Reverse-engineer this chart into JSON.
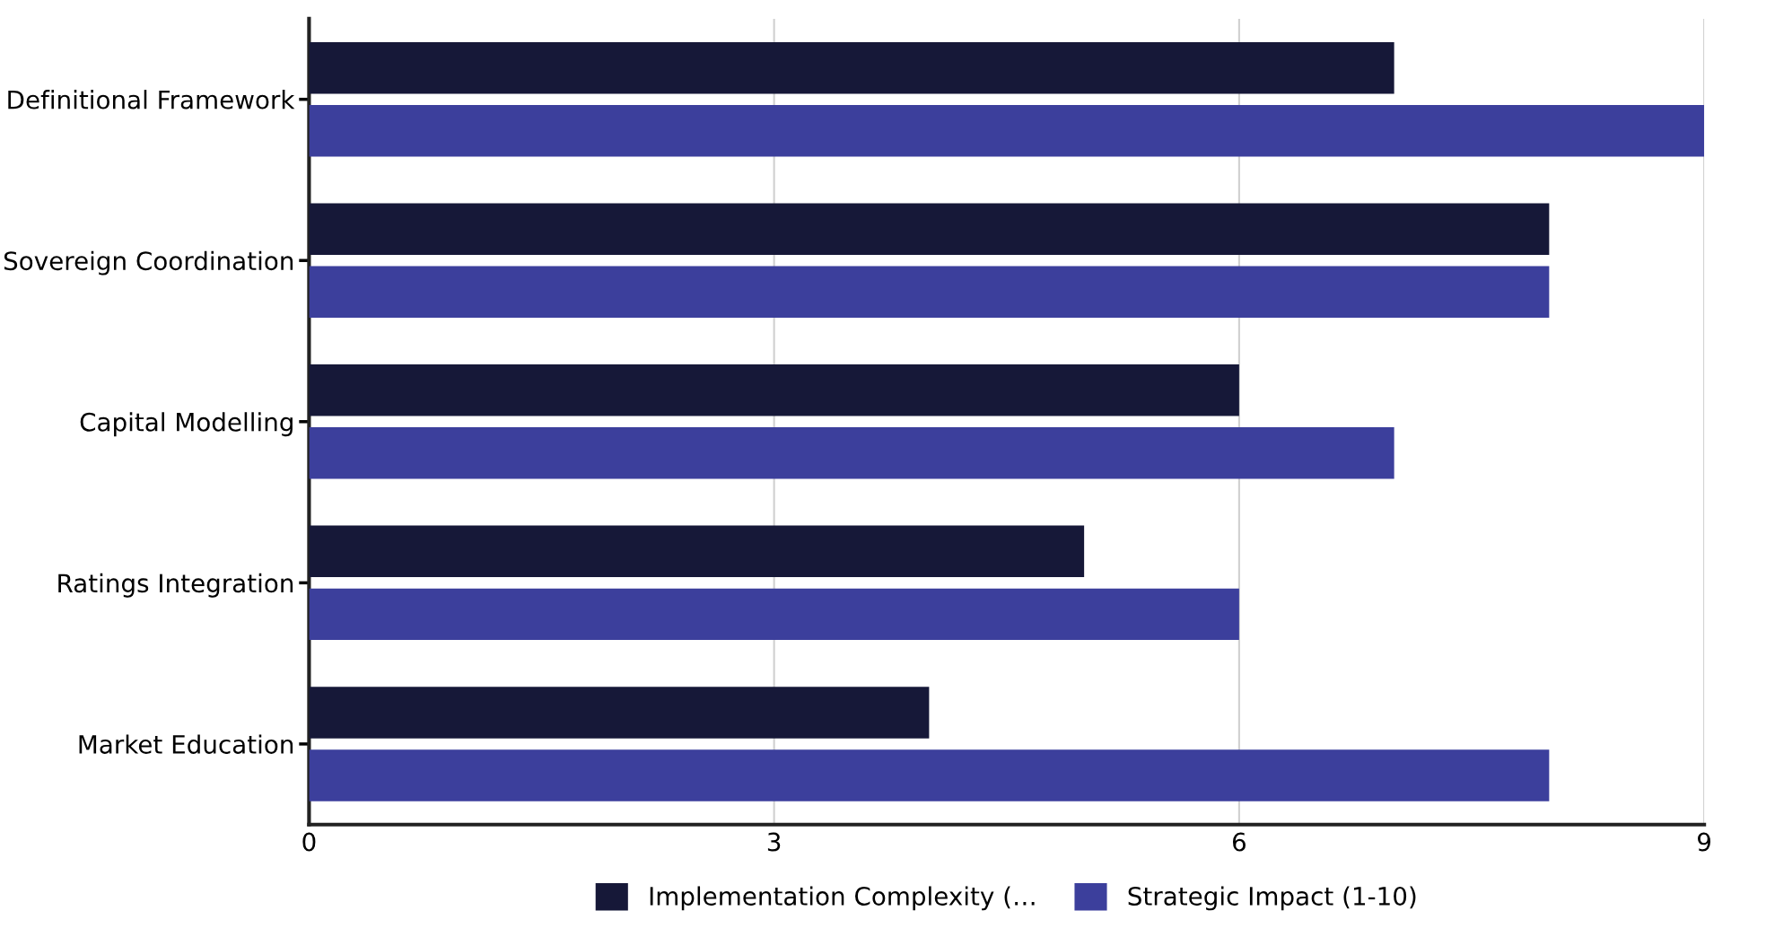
{
  "chart_data": {
    "type": "bar",
    "orientation": "horizontal",
    "categories": [
      "Definitional Framework",
      "Sovereign Coordination",
      "Capital Modelling",
      "Ratings Integration",
      "Market Education"
    ],
    "series": [
      {
        "name": "Implementation Complexity (…",
        "color": "#161838",
        "values": [
          7,
          8,
          6,
          5,
          4
        ]
      },
      {
        "name": "Strategic Impact (1-10)",
        "color": "#3c3f9c",
        "values": [
          9,
          8,
          7,
          6,
          8
        ]
      }
    ],
    "xlim": [
      0,
      9
    ],
    "xticks": [
      0,
      3,
      6,
      9
    ],
    "grid": "x",
    "legend": "bottom"
  }
}
